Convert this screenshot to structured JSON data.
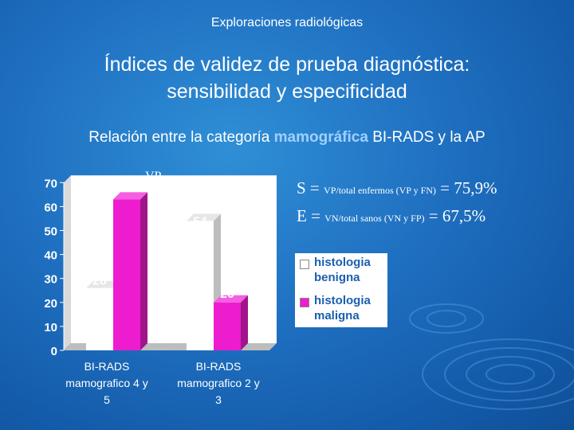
{
  "header": "Exploraciones radiológicas",
  "title_line1": "Índices de validez de prueba diagnóstica:",
  "title_line2": "sensibilidad y especificidad",
  "subtitle": {
    "before": "Relación entre la categoría ",
    "highlight": "mamográfica",
    "after": " BI-RADS y la AP"
  },
  "formula_s": {
    "lhs": "S = ",
    "text": "VP/total enfermos (VP y FN)",
    "rhs": " = 75,9%"
  },
  "formula_e": {
    "lhs": "E = ",
    "text": "VN/total sanos (VN y FP)",
    "rhs": " = 67,5%"
  },
  "colors": {
    "benigna": "#ffffff",
    "maligna": "#ee1ccf",
    "side": "#c8c8c8",
    "plot_back": "#ffffff"
  },
  "chart_data": {
    "type": "bar",
    "categories": [
      [
        "BI-RADS",
        "mamografico 4 y",
        "5"
      ],
      [
        "BI-RADS",
        "mamografico 2 y",
        "3"
      ]
    ],
    "series": [
      {
        "name": "histologia benigna",
        "values": [
          26,
          54
        ]
      },
      {
        "name": "histologia maligna",
        "values": [
          63,
          20
        ]
      }
    ],
    "ylim": [
      0,
      70
    ],
    "yticks": [
      0,
      10,
      20,
      30,
      40,
      50,
      60,
      70
    ],
    "annotations": [
      "FP",
      "VP",
      "VN",
      "FN"
    ],
    "legend": [
      "histologia benigna",
      "histologia maligna"
    ],
    "legend_position": "right"
  }
}
